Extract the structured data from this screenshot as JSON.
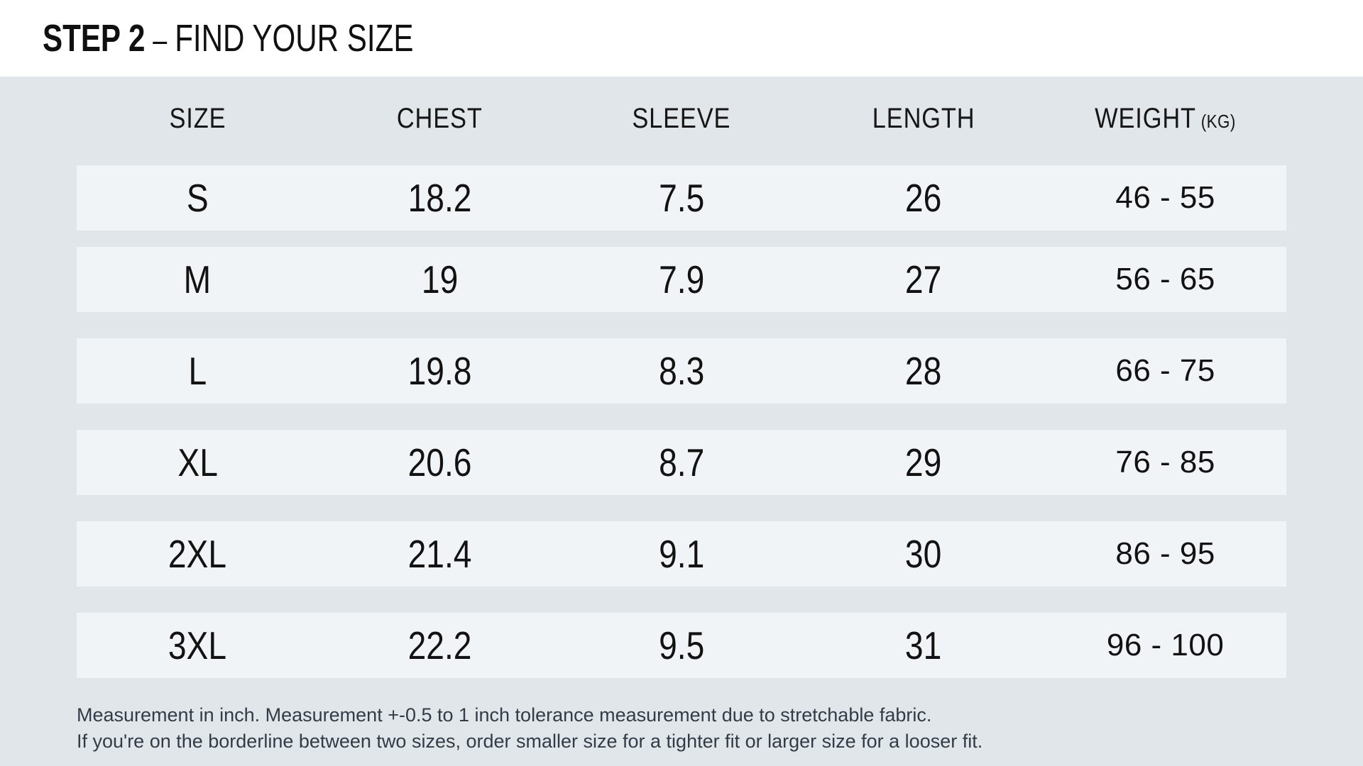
{
  "header": {
    "step_label": "STEP 2",
    "separator": "–",
    "title": "FIND YOUR SIZE"
  },
  "table": {
    "columns": [
      {
        "label": "SIZE"
      },
      {
        "label": "CHEST"
      },
      {
        "label": "SLEEVE"
      },
      {
        "label": "LENGTH"
      },
      {
        "label": "WEIGHT",
        "suffix": "(KG)"
      }
    ],
    "rows": [
      {
        "size": "S",
        "chest": "18.2",
        "sleeve": "7.5",
        "length": "26",
        "weight": "46 - 55"
      },
      {
        "size": "M",
        "chest": "19",
        "sleeve": "7.9",
        "length": "27",
        "weight": "56 - 65"
      },
      {
        "size": "L",
        "chest": "19.8",
        "sleeve": "8.3",
        "length": "28",
        "weight": "66 - 75"
      },
      {
        "size": "XL",
        "chest": "20.6",
        "sleeve": "8.7",
        "length": "29",
        "weight": "76 - 85"
      },
      {
        "size": "2XL",
        "chest": "21.4",
        "sleeve": "9.1",
        "length": "30",
        "weight": "86 - 95"
      },
      {
        "size": "3XL",
        "chest": "22.2",
        "sleeve": "9.5",
        "length": "31",
        "weight": "96 - 100"
      }
    ]
  },
  "notes": {
    "line1": "Measurement in inch. Measurement +-0.5 to 1 inch tolerance measurement due to stretchable fabric.",
    "line2": "If you're on the borderline between two sizes, order smaller size for a tighter fit or larger size for a looser fit."
  },
  "colors": {
    "page_background": "#e0e6e9",
    "row_background": "#f1f4f6",
    "title_band": "#ffffff",
    "text": "#141414",
    "note_text": "#333c46"
  }
}
